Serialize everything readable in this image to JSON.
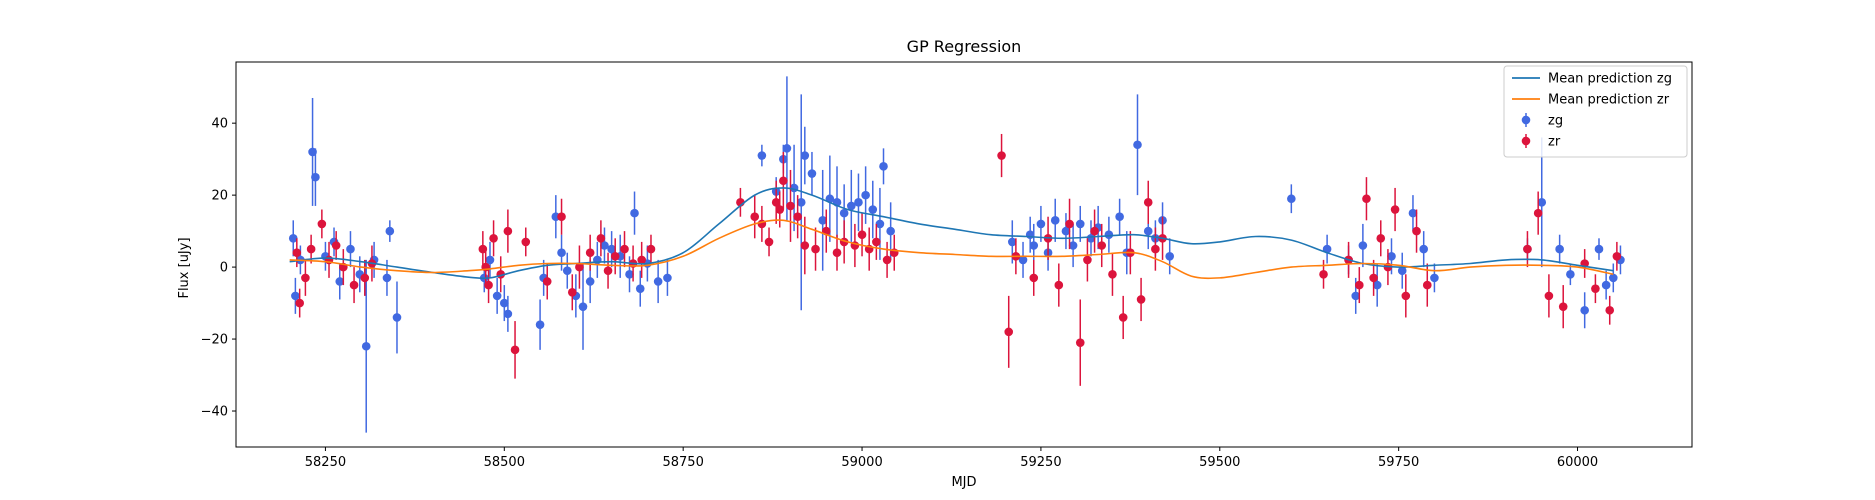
{
  "chart_data": {
    "type": "scatter",
    "title": "GP Regression",
    "xlabel": "MJD",
    "ylabel": "Flux [uJy]",
    "xlim": [
      58125,
      60160
    ],
    "ylim": [
      -50,
      57
    ],
    "xticks": [
      58250,
      58500,
      58750,
      59000,
      59250,
      59500,
      59750,
      60000
    ],
    "yticks": [
      -40,
      -20,
      0,
      20,
      40
    ],
    "grid": false,
    "legend_position": "top-right",
    "legend": [
      {
        "label": "Mean prediction zg",
        "kind": "line",
        "color": "#1f77b4"
      },
      {
        "label": "Mean prediction zr",
        "kind": "line",
        "color": "#ff7f0e"
      },
      {
        "label": "zg",
        "kind": "errorbar",
        "color": "#4169e1"
      },
      {
        "label": "zr",
        "kind": "errorbar",
        "color": "#dc143c"
      }
    ],
    "lines": [
      {
        "name": "Mean prediction zg",
        "color": "#1f77b4",
        "x": [
          58200,
          58250,
          58300,
          58350,
          58400,
          58450,
          58480,
          58520,
          58560,
          58600,
          58650,
          58700,
          58750,
          58800,
          58850,
          58890,
          58930,
          58980,
          59030,
          59080,
          59130,
          59180,
          59230,
          59280,
          59330,
          59380,
          59420,
          59460,
          59500,
          59550,
          59600,
          59650,
          59700,
          59750,
          59800,
          59850,
          59900,
          59950,
          60000,
          60050
        ],
        "y": [
          1.5,
          2.5,
          1.5,
          0,
          -1.5,
          -2.8,
          -3.0,
          -1.0,
          0.5,
          1.0,
          1.5,
          1.0,
          4.0,
          12.0,
          20.0,
          22.0,
          20.0,
          16.0,
          14.0,
          12.0,
          10.5,
          9.0,
          8.5,
          8.0,
          8.5,
          9.0,
          8.0,
          6.5,
          7.0,
          8.5,
          7.5,
          4.0,
          1.0,
          0,
          0.5,
          1.0,
          2.0,
          2.0,
          0.5,
          -1.0
        ]
      },
      {
        "name": "Mean prediction zr",
        "color": "#ff7f0e",
        "x": [
          58200,
          58250,
          58300,
          58350,
          58400,
          58450,
          58480,
          58520,
          58560,
          58600,
          58650,
          58700,
          58750,
          58800,
          58850,
          58890,
          58930,
          58980,
          59030,
          59080,
          59130,
          59180,
          59230,
          59280,
          59330,
          59380,
          59420,
          59460,
          59500,
          59550,
          59600,
          59650,
          59700,
          59750,
          59800,
          59850,
          59900,
          59950,
          60000,
          60050
        ],
        "y": [
          2.0,
          1.5,
          0,
          -1.0,
          -1.5,
          -1.0,
          -0.5,
          0.5,
          1.0,
          1.0,
          0.5,
          0.5,
          3.0,
          8.0,
          12.0,
          13.0,
          10.5,
          7.0,
          5.0,
          4.0,
          3.5,
          3.0,
          3.0,
          3.0,
          3.5,
          4.0,
          1.5,
          -2.5,
          -3.0,
          -1.5,
          0,
          0.5,
          1.0,
          0.5,
          -1.0,
          0,
          0.5,
          0.5,
          0,
          -2.0
        ]
      }
    ],
    "series": [
      {
        "name": "zg",
        "color": "#4169e1",
        "x": [
          58205,
          58208,
          58215,
          58232,
          58236,
          58250,
          58262,
          58270,
          58285,
          58298,
          58307,
          58318,
          58336,
          58340,
          58350,
          58472,
          58480,
          58490,
          58500,
          58505,
          58550,
          58555,
          58572,
          58580,
          58588,
          58600,
          58610,
          58620,
          58630,
          58640,
          58650,
          58662,
          58675,
          58682,
          58690,
          58700,
          58715,
          58728,
          58860,
          58880,
          58890,
          58895,
          58905,
          58915,
          58920,
          58930,
          58945,
          58955,
          58965,
          58975,
          58985,
          58995,
          59005,
          59015,
          59025,
          59030,
          59040,
          59210,
          59225,
          59235,
          59240,
          59250,
          59260,
          59270,
          59285,
          59295,
          59305,
          59320,
          59330,
          59345,
          59360,
          59370,
          59385,
          59400,
          59410,
          59420,
          59430,
          59600,
          59650,
          59680,
          59690,
          59700,
          59720,
          59740,
          59755,
          59770,
          59785,
          59800,
          59930,
          59950,
          59975,
          59990,
          60010,
          60030,
          60040,
          60050,
          60060
        ],
        "y": [
          8,
          -8,
          2,
          32,
          25,
          3,
          7,
          -4,
          5,
          -2,
          -22,
          2,
          -3,
          10,
          -14,
          -3,
          2,
          -8,
          -10,
          -13,
          -16,
          -3,
          14,
          4,
          -1,
          -8,
          -11,
          -4,
          2,
          6,
          5,
          3,
          -2,
          15,
          -6,
          1,
          -4,
          -3,
          31,
          21,
          30,
          33,
          22,
          18,
          31,
          26,
          13,
          19,
          18,
          15,
          17,
          18,
          20,
          16,
          12,
          28,
          10,
          7,
          2,
          9,
          6,
          12,
          4,
          13,
          10,
          6,
          12,
          8,
          11,
          9,
          14,
          4,
          34,
          10,
          8,
          13,
          3,
          19,
          5,
          2,
          -8,
          6,
          -5,
          3,
          -1,
          15,
          5,
          -3,
          5,
          18,
          5,
          -2,
          -12,
          5,
          -5,
          -3,
          2
        ],
        "err": [
          5,
          5,
          4,
          15,
          8,
          4,
          4,
          5,
          5,
          5,
          24,
          5,
          5,
          3,
          10,
          4,
          5,
          5,
          5,
          5,
          7,
          5,
          6,
          5,
          5,
          6,
          12,
          6,
          5,
          5,
          5,
          6,
          5,
          6,
          5,
          5,
          6,
          5,
          3,
          4,
          4,
          20,
          12,
          30,
          8,
          6,
          14,
          12,
          10,
          8,
          10,
          8,
          8,
          8,
          10,
          5,
          8,
          6,
          5,
          5,
          6,
          5,
          5,
          6,
          5,
          6,
          5,
          5,
          6,
          5,
          5,
          6,
          14,
          5,
          5,
          5,
          5,
          4,
          4,
          4,
          5,
          6,
          6,
          5,
          5,
          5,
          5,
          4,
          3,
          18,
          4,
          3,
          5,
          3,
          4,
          4,
          4
        ]
      },
      {
        "name": "zr",
        "color": "#dc143c",
        "x": [
          58210,
          58214,
          58222,
          58230,
          58245,
          58255,
          58265,
          58275,
          58290,
          58305,
          58315,
          58470,
          58474,
          58478,
          58485,
          58495,
          58505,
          58515,
          58530,
          58560,
          58580,
          58595,
          58605,
          58620,
          58635,
          58645,
          58655,
          58668,
          58680,
          58692,
          58705,
          58830,
          58850,
          58860,
          58870,
          58880,
          58885,
          58890,
          58900,
          58910,
          58920,
          58935,
          58950,
          58965,
          58975,
          58990,
          59000,
          59010,
          59020,
          59035,
          59045,
          59195,
          59205,
          59215,
          59240,
          59260,
          59275,
          59290,
          59305,
          59315,
          59325,
          59335,
          59350,
          59365,
          59375,
          59390,
          59400,
          59410,
          59420,
          59645,
          59680,
          59695,
          59705,
          59715,
          59725,
          59735,
          59745,
          59760,
          59775,
          59790,
          59930,
          59945,
          59960,
          59980,
          60010,
          60025,
          60045,
          60055
        ],
        "y": [
          4,
          -10,
          -3,
          5,
          12,
          2,
          6,
          0,
          -5,
          -3,
          1,
          5,
          0,
          -5,
          8,
          -2,
          10,
          -23,
          7,
          -4,
          14,
          -7,
          0,
          4,
          8,
          -1,
          3,
          5,
          1,
          2,
          5,
          18,
          14,
          12,
          7,
          18,
          16,
          24,
          17,
          14,
          6,
          5,
          10,
          4,
          7,
          6,
          9,
          5,
          7,
          2,
          4,
          31,
          -18,
          3,
          -3,
          8,
          -5,
          12,
          -21,
          2,
          10,
          6,
          -2,
          -14,
          4,
          -9,
          18,
          5,
          8,
          -2,
          2,
          -5,
          19,
          -3,
          8,
          0,
          16,
          -8,
          10,
          -5,
          5,
          15,
          -8,
          -11,
          1,
          -6,
          -12,
          3
        ],
        "err": [
          4,
          4,
          5,
          4,
          4,
          5,
          4,
          5,
          5,
          5,
          5,
          5,
          5,
          5,
          5,
          5,
          6,
          8,
          4,
          5,
          5,
          5,
          6,
          5,
          5,
          5,
          5,
          5,
          5,
          5,
          4,
          4,
          6,
          5,
          4,
          6,
          5,
          8,
          10,
          6,
          8,
          6,
          6,
          5,
          6,
          6,
          6,
          6,
          5,
          5,
          5,
          6,
          10,
          5,
          5,
          6,
          6,
          7,
          12,
          6,
          6,
          6,
          6,
          6,
          6,
          6,
          6,
          6,
          6,
          4,
          5,
          5,
          6,
          5,
          5,
          5,
          6,
          6,
          6,
          6,
          5,
          6,
          6,
          6,
          4,
          4,
          4,
          4
        ]
      }
    ]
  }
}
